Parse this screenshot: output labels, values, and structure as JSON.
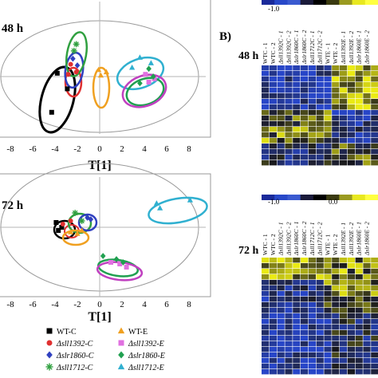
{
  "panel_a": {
    "plot_48": {
      "time_label": "48 h",
      "x_axis_label": "T[1]",
      "x_ticks": [
        "-8",
        "-6",
        "-4",
        "-2",
        "0",
        "2",
        "4",
        "6",
        "8"
      ]
    },
    "plot_72": {
      "time_label": "72 h",
      "x_axis_label": "T[1]",
      "x_ticks": [
        "-8",
        "-6",
        "-4",
        "-2",
        "0",
        "2",
        "4",
        "6",
        "8"
      ]
    }
  },
  "legend": {
    "items": [
      {
        "label": "WT-C",
        "marker": "square",
        "color": "#000000"
      },
      {
        "label": "WT-E",
        "marker": "triangle",
        "color": "#f0a020"
      },
      {
        "label": "Δsll1392-C",
        "marker": "circle",
        "color": "#e03030"
      },
      {
        "label": "Δsll1392-E",
        "marker": "square",
        "color": "#e070e0"
      },
      {
        "label": "Δslr1860-C",
        "marker": "diamond",
        "color": "#3040c0"
      },
      {
        "label": "Δslr1860-E",
        "marker": "diamond",
        "color": "#20a050"
      },
      {
        "label": "Δsll1712-C",
        "marker": "star",
        "color": "#30a040"
      },
      {
        "label": "Δsll1712-E",
        "marker": "triangle",
        "color": "#30b0d0"
      }
    ]
  },
  "panel_b": {
    "label": "B)",
    "heatmap_48": {
      "time_label": "48 h",
      "scale_min": "-1.0",
      "columns": [
        "WTC - 1",
        "WTC - 2",
        "Δsll1392C - 1",
        "Δsll1392C - 2",
        "Δslr1860C - 1",
        "Δslr1860C - 2",
        "Δsll1712C - 1",
        "Δsll1712C - 2",
        "WTE - 1",
        "WTE - 2",
        "Δsll1392E - 1",
        "Δsll1392E - 2",
        "Δslr1860E - 1",
        "Δslr1860E - 2"
      ]
    },
    "heatmap_72": {
      "time_label": "72 h",
      "scale_min": "-1.0",
      "scale_mid": "0.0",
      "columns": [
        "WTC - 1",
        "WTC - 2",
        "Δsll1392C - 1",
        "Δsll1392C - 2",
        "Δslr1860C - 1",
        "Δslr1860C - 2",
        "Δsll1712C - 1",
        "Δsll1712C - 2",
        "WTE - 1",
        "WTE - 2",
        "Δsll1392E - 1",
        "Δsll1392E - 2",
        "Δslr1860E - 1",
        "Δslr1860E - 2"
      ]
    }
  },
  "chart_data": [
    {
      "type": "scatter",
      "title": "48 h",
      "xlabel": "T[1]",
      "xlim": [
        -8.5,
        8.5
      ],
      "ylim": [
        -5,
        5
      ],
      "grid": false,
      "legend": "below",
      "series": [
        {
          "name": "WT-C",
          "color": "#000000",
          "marker": "square",
          "x": [
            -3.8,
            -2.9,
            -4.3
          ],
          "y": [
            0.3,
            -1.1,
            -3.2
          ]
        },
        {
          "name": "Δsll1392-C",
          "color": "#e03030",
          "marker": "circle",
          "x": [
            -2.6,
            -2.1,
            -2.8
          ],
          "y": [
            1.1,
            0.4,
            0.2
          ]
        },
        {
          "name": "Δslr1860-C",
          "color": "#3040c0",
          "marker": "diamond",
          "x": [
            -2.4,
            -2.0
          ],
          "y": [
            1.6,
            1.0
          ]
        },
        {
          "name": "Δsll1712-C",
          "color": "#30a040",
          "marker": "star",
          "x": [
            -2.1,
            -2.3
          ],
          "y": [
            2.9,
            2.3
          ]
        },
        {
          "name": "WT-E",
          "color": "#f0a020",
          "marker": "triangle",
          "x": [
            -0.1,
            0.6,
            0.1
          ],
          "y": [
            0.6,
            0.4,
            0.1
          ]
        },
        {
          "name": "Δsll1392-E",
          "color": "#e070e0",
          "marker": "square",
          "x": [
            4.1,
            4.9,
            4.4
          ],
          "y": [
            0.2,
            -0.2,
            -0.5
          ]
        },
        {
          "name": "Δslr1860-E",
          "color": "#20a050",
          "marker": "diamond",
          "x": [
            4.4,
            4.8,
            3.6
          ],
          "y": [
            0.7,
            0.0,
            -0.6
          ]
        },
        {
          "name": "Δsll1712-E",
          "color": "#30b0d0",
          "marker": "triangle",
          "x": [
            3.6,
            4.6,
            2.9
          ],
          "y": [
            1.7,
            1.2,
            0.8
          ]
        }
      ]
    },
    {
      "type": "scatter",
      "title": "72 h",
      "xlabel": "T[1]",
      "xlim": [
        -8.5,
        8.5
      ],
      "ylim": [
        -5,
        5
      ],
      "grid": false,
      "legend": "below",
      "series": [
        {
          "name": "WT-C",
          "color": "#000000",
          "marker": "square",
          "x": [
            -3.9,
            -3.4,
            -3.7
          ],
          "y": [
            0.3,
            0.0,
            -0.2
          ]
        },
        {
          "name": "Δsll1392-C",
          "color": "#e03030",
          "marker": "circle",
          "x": [
            -3.3,
            -2.6
          ],
          "y": [
            0.2,
            0.4
          ]
        },
        {
          "name": "Δslr1860-C",
          "color": "#3040c0",
          "marker": "diamond",
          "x": [
            -1.1,
            -0.8
          ],
          "y": [
            0.6,
            0.5
          ]
        },
        {
          "name": "Δsll1712-C",
          "color": "#30a040",
          "marker": "star",
          "x": [
            -2.2,
            -1.6
          ],
          "y": [
            0.9,
            0.4
          ]
        },
        {
          "name": "WT-E",
          "color": "#f0a020",
          "marker": "triangle",
          "x": [
            -2.6,
            -2.0,
            -1.6
          ],
          "y": [
            -0.3,
            -0.4,
            -0.2
          ]
        },
        {
          "name": "Δsll1392-E",
          "color": "#e070e0",
          "marker": "square",
          "x": [
            1.0,
            1.8,
            2.4
          ],
          "y": [
            -2.2,
            -2.3,
            -2.5
          ]
        },
        {
          "name": "Δslr1860-E",
          "color": "#20a050",
          "marker": "diamond",
          "x": [
            0.3,
            1.5,
            2.1
          ],
          "y": [
            -1.8,
            -2.0,
            -2.2
          ]
        },
        {
          "name": "Δsll1712-E",
          "color": "#30b0d0",
          "marker": "triangle",
          "x": [
            5.1,
            5.4,
            8.1
          ],
          "y": [
            1.5,
            1.2,
            1.7
          ]
        }
      ]
    }
  ]
}
